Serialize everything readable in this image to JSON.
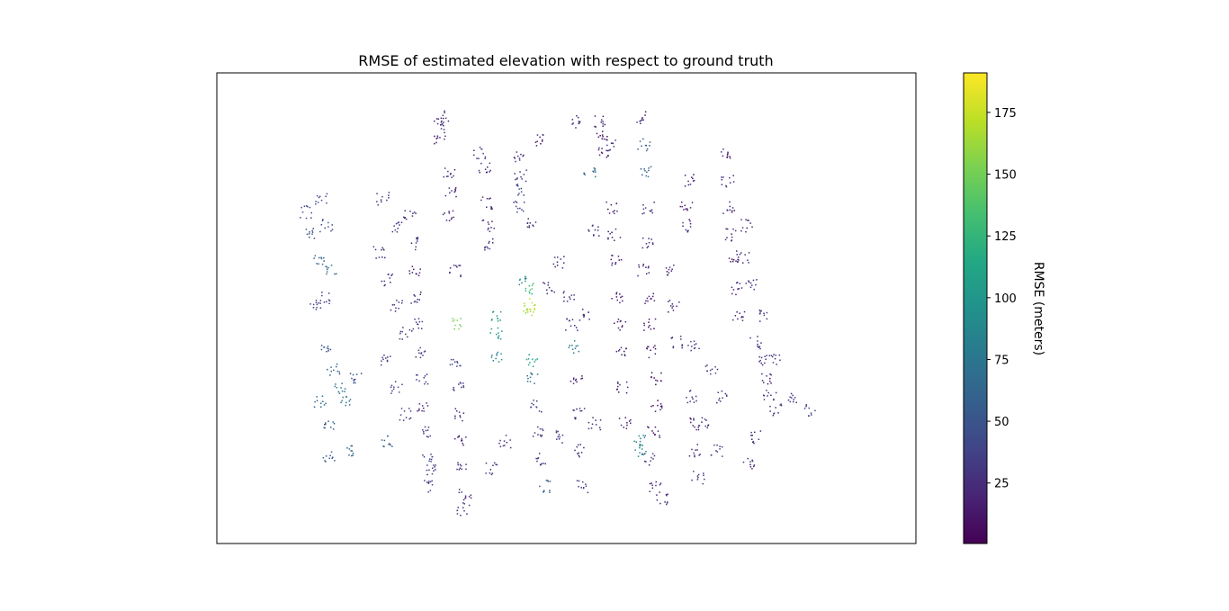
{
  "chart_data": {
    "type": "scatter",
    "title": "RMSE of estimated elevation with respect to ground truth",
    "xlabel": "",
    "ylabel": "",
    "axes_ticks_visible": false,
    "colorbar": {
      "label": "RMSE (meters)",
      "colormap": "viridis",
      "range": [
        0.5,
        191
      ],
      "ticks": [
        25,
        50,
        75,
        100,
        125,
        150,
        175
      ],
      "tick_labels": [
        "25",
        "50",
        "75",
        "100",
        "125",
        "150",
        "175"
      ]
    },
    "points": [
      [
        489,
        128,
        20
      ],
      [
        492,
        140,
        22
      ],
      [
        488,
        152,
        18
      ],
      [
        533,
        170,
        30
      ],
      [
        538,
        185,
        25
      ],
      [
        575,
        172,
        28
      ],
      [
        578,
        195,
        26
      ],
      [
        580,
        210,
        40
      ],
      [
        575,
        230,
        35
      ],
      [
        498,
        190,
        22
      ],
      [
        500,
        215,
        25
      ],
      [
        497,
        240,
        20
      ],
      [
        540,
        225,
        24
      ],
      [
        542,
        250,
        22
      ],
      [
        545,
        270,
        30
      ],
      [
        665,
        135,
        15
      ],
      [
        668,
        150,
        12
      ],
      [
        670,
        170,
        20
      ],
      [
        710,
        130,
        25
      ],
      [
        715,
        160,
        55
      ],
      [
        718,
        190,
        60
      ],
      [
        720,
        230,
        30
      ],
      [
        718,
        270,
        25
      ],
      [
        715,
        300,
        18
      ],
      [
        720,
        330,
        15
      ],
      [
        722,
        360,
        12
      ],
      [
        725,
        390,
        14
      ],
      [
        728,
        420,
        12
      ],
      [
        730,
        450,
        10
      ],
      [
        726,
        480,
        15
      ],
      [
        720,
        510,
        30
      ],
      [
        728,
        540,
        20
      ],
      [
        735,
        555,
        25
      ],
      [
        805,
        170,
        20
      ],
      [
        808,
        200,
        25
      ],
      [
        810,
        230,
        18
      ],
      [
        812,
        260,
        22
      ],
      [
        815,
        290,
        15
      ],
      [
        818,
        320,
        20
      ],
      [
        820,
        350,
        22
      ],
      [
        840,
        380,
        30
      ],
      [
        845,
        400,
        25
      ],
      [
        850,
        420,
        20
      ],
      [
        855,
        440,
        28
      ],
      [
        862,
        455,
        30
      ],
      [
        356,
        220,
        40
      ],
      [
        362,
        250,
        45
      ],
      [
        355,
        290,
        65
      ],
      [
        367,
        300,
        70
      ],
      [
        360,
        330,
        35
      ],
      [
        360,
        390,
        50
      ],
      [
        370,
        410,
        60
      ],
      [
        378,
        430,
        75
      ],
      [
        382,
        445,
        70
      ],
      [
        365,
        470,
        55
      ],
      [
        385,
        500,
        62
      ],
      [
        455,
        240,
        22
      ],
      [
        458,
        270,
        25
      ],
      [
        460,
        300,
        20
      ],
      [
        462,
        330,
        25
      ],
      [
        465,
        360,
        30
      ],
      [
        466,
        390,
        35
      ],
      [
        468,
        420,
        28
      ],
      [
        470,
        450,
        25
      ],
      [
        472,
        480,
        30
      ],
      [
        474,
        510,
        40
      ],
      [
        476,
        540,
        35
      ],
      [
        505,
        300,
        25
      ],
      [
        508,
        360,
        150
      ],
      [
        506,
        400,
        40
      ],
      [
        508,
        430,
        30
      ],
      [
        510,
        460,
        25
      ],
      [
        512,
        490,
        20
      ],
      [
        514,
        520,
        22
      ],
      [
        516,
        550,
        25
      ],
      [
        514,
        565,
        30
      ],
      [
        550,
        350,
        100
      ],
      [
        551,
        370,
        95
      ],
      [
        552,
        395,
        85
      ],
      [
        585,
        320,
        130
      ],
      [
        587,
        338,
        165
      ],
      [
        588,
        345,
        170
      ],
      [
        583,
        310,
        90
      ],
      [
        590,
        400,
        110
      ],
      [
        592,
        420,
        70
      ],
      [
        595,
        450,
        40
      ],
      [
        598,
        480,
        30
      ],
      [
        600,
        510,
        25
      ],
      [
        604,
        540,
        55
      ],
      [
        632,
        330,
        30
      ],
      [
        635,
        360,
        25
      ],
      [
        637,
        385,
        80
      ],
      [
        640,
        420,
        25
      ],
      [
        642,
        460,
        20
      ],
      [
        644,
        500,
        25
      ],
      [
        646,
        540,
        30
      ],
      [
        680,
        230,
        15
      ],
      [
        682,
        260,
        20
      ],
      [
        684,
        290,
        15
      ],
      [
        686,
        330,
        12
      ],
      [
        688,
        360,
        15
      ],
      [
        690,
        390,
        22
      ],
      [
        692,
        430,
        20
      ],
      [
        694,
        470,
        15
      ],
      [
        710,
        490,
        85
      ],
      [
        712,
        500,
        90
      ],
      [
        745,
        300,
        20
      ],
      [
        748,
        340,
        25
      ],
      [
        752,
        380,
        22
      ],
      [
        760,
        250,
        25
      ],
      [
        762,
        230,
        20
      ],
      [
        765,
        200,
        15
      ],
      [
        768,
        440,
        25
      ],
      [
        770,
        470,
        20
      ],
      [
        772,
        500,
        25
      ],
      [
        775,
        530,
        30
      ],
      [
        832,
        515,
        20
      ],
      [
        840,
        485,
        22
      ],
      [
        860,
        400,
        30
      ],
      [
        880,
        440,
        35
      ],
      [
        900,
        455,
        40
      ],
      [
        655,
        190,
        60
      ],
      [
        600,
        155,
        20
      ],
      [
        640,
        135,
        25
      ],
      [
        680,
        160,
        30
      ],
      [
        620,
        290,
        22
      ],
      [
        660,
        255,
        25
      ],
      [
        590,
        245,
        28
      ],
      [
        610,
        320,
        30
      ],
      [
        650,
        350,
        26
      ],
      [
        425,
        220,
        30
      ],
      [
        440,
        250,
        28
      ],
      [
        420,
        280,
        24
      ],
      [
        430,
        310,
        26
      ],
      [
        440,
        340,
        25
      ],
      [
        450,
        370,
        28
      ],
      [
        430,
        400,
        32
      ],
      [
        440,
        430,
        35
      ],
      [
        450,
        460,
        30
      ],
      [
        430,
        490,
        55
      ],
      [
        480,
        520,
        28
      ],
      [
        545,
        520,
        30
      ],
      [
        560,
        490,
        26
      ],
      [
        620,
        485,
        28
      ],
      [
        660,
        470,
        25
      ],
      [
        770,
        385,
        35
      ],
      [
        790,
        410,
        30
      ],
      [
        800,
        440,
        28
      ],
      [
        780,
        470,
        25
      ],
      [
        795,
        500,
        32
      ],
      [
        830,
        250,
        22
      ],
      [
        825,
        285,
        25
      ],
      [
        835,
        315,
        28
      ],
      [
        845,
        350,
        30
      ],
      [
        340,
        235,
        40
      ],
      [
        345,
        260,
        45
      ],
      [
        350,
        340,
        35
      ],
      [
        355,
        445,
        65
      ],
      [
        365,
        507,
        55
      ],
      [
        395,
        420,
        45
      ]
    ]
  }
}
